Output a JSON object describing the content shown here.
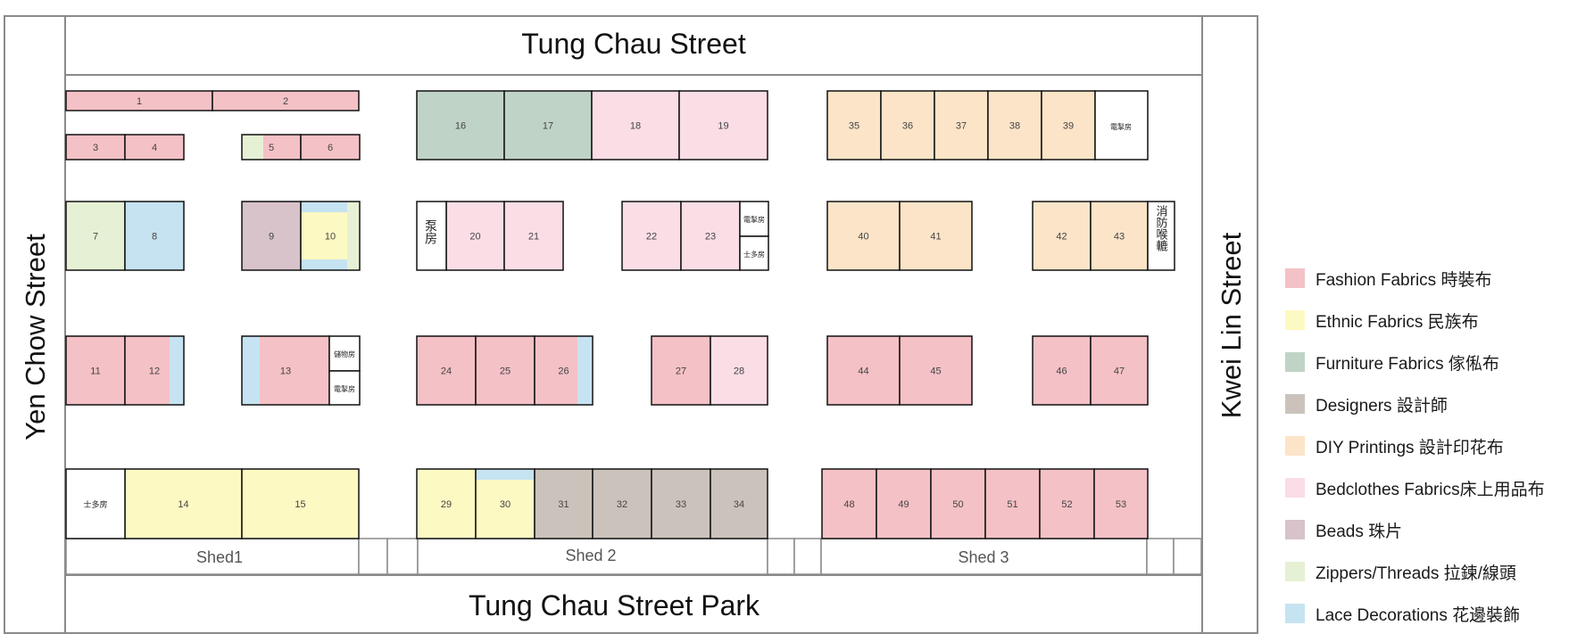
{
  "streets": {
    "top": "Tung Chau Street",
    "bottom": "Tung Chau Street Park",
    "left": "Yen Chow Street",
    "right": "Kwei Lin Street"
  },
  "sheds": [
    "Shed1",
    "Shed 2",
    "Shed 3"
  ],
  "colors": {
    "fashion": "#f4c1c6",
    "ethnic": "#fdf9c3",
    "furniture": "#c0d3c7",
    "designers": "#cbc3bb",
    "diy": "#fce4c8",
    "bedclothes": "#fbdde6",
    "beads": "#d8c3ca",
    "zippers": "#e6f0d4",
    "lace": "#c6e3f1",
    "service": "#ffffff"
  },
  "legend": [
    {
      "key": "fashion",
      "label": "Fashion Fabrics 時裝布"
    },
    {
      "key": "ethnic",
      "label": "Ethnic Fabrics 民族布"
    },
    {
      "key": "furniture",
      "label": "Furniture Fabrics 傢俬布"
    },
    {
      "key": "designers",
      "label": "Designers 設計師"
    },
    {
      "key": "diy",
      "label": "DIY Printings 設計印花布"
    },
    {
      "key": "bedclothes",
      "label": "Bedclothes Fabrics床上用品布"
    },
    {
      "key": "beads",
      "label": "Beads 珠片"
    },
    {
      "key": "zippers",
      "label": "Zippers/Threads 拉鍊/線頭"
    },
    {
      "key": "lace",
      "label": "Lace Decorations 花邊裝飾"
    }
  ],
  "stalls": [
    {
      "id": "1",
      "category": "fashion"
    },
    {
      "id": "2",
      "category": "fashion"
    },
    {
      "id": "3",
      "category": "fashion"
    },
    {
      "id": "4",
      "category": "fashion"
    },
    {
      "id": "5",
      "category": "fashion"
    },
    {
      "id": "6",
      "category": "fashion"
    },
    {
      "id": "7",
      "category": "zippers"
    },
    {
      "id": "8",
      "category": "lace"
    },
    {
      "id": "9",
      "category": "beads"
    },
    {
      "id": "10",
      "category": "ethnic"
    },
    {
      "id": "11",
      "category": "fashion"
    },
    {
      "id": "12",
      "category": "fashion"
    },
    {
      "id": "13",
      "category": "fashion"
    },
    {
      "id": "14",
      "category": "ethnic"
    },
    {
      "id": "15",
      "category": "ethnic"
    },
    {
      "id": "16",
      "category": "furniture"
    },
    {
      "id": "17",
      "category": "furniture"
    },
    {
      "id": "18",
      "category": "bedclothes"
    },
    {
      "id": "19",
      "category": "bedclothes"
    },
    {
      "id": "20",
      "category": "bedclothes"
    },
    {
      "id": "21",
      "category": "bedclothes"
    },
    {
      "id": "22",
      "category": "bedclothes"
    },
    {
      "id": "23",
      "category": "bedclothes"
    },
    {
      "id": "24",
      "category": "fashion"
    },
    {
      "id": "25",
      "category": "fashion"
    },
    {
      "id": "26",
      "category": "fashion"
    },
    {
      "id": "27",
      "category": "fashion"
    },
    {
      "id": "28",
      "category": "bedclothes"
    },
    {
      "id": "29",
      "category": "ethnic"
    },
    {
      "id": "30",
      "category": "ethnic"
    },
    {
      "id": "31",
      "category": "designers"
    },
    {
      "id": "32",
      "category": "designers"
    },
    {
      "id": "33",
      "category": "designers"
    },
    {
      "id": "34",
      "category": "designers"
    },
    {
      "id": "35",
      "category": "diy"
    },
    {
      "id": "36",
      "category": "diy"
    },
    {
      "id": "37",
      "category": "diy"
    },
    {
      "id": "38",
      "category": "diy"
    },
    {
      "id": "39",
      "category": "diy"
    },
    {
      "id": "40",
      "category": "diy"
    },
    {
      "id": "41",
      "category": "diy"
    },
    {
      "id": "42",
      "category": "diy"
    },
    {
      "id": "43",
      "category": "diy"
    },
    {
      "id": "44",
      "category": "fashion"
    },
    {
      "id": "45",
      "category": "fashion"
    },
    {
      "id": "46",
      "category": "fashion"
    },
    {
      "id": "47",
      "category": "fashion"
    },
    {
      "id": "48",
      "category": "fashion"
    },
    {
      "id": "49",
      "category": "fashion"
    },
    {
      "id": "50",
      "category": "fashion"
    },
    {
      "id": "51",
      "category": "fashion"
    },
    {
      "id": "52",
      "category": "fashion"
    },
    {
      "id": "53",
      "category": "fashion"
    }
  ],
  "facilities": {
    "electric_a": "電掣房",
    "electric_b": "電掣房",
    "electric_c": "電掣房",
    "electric_d": "電掣房",
    "pump_room": "泵房",
    "store_a": "士多房",
    "store_b": "士多房",
    "store_c": "儲物房",
    "fire_hydrant": "消防喉轆"
  }
}
